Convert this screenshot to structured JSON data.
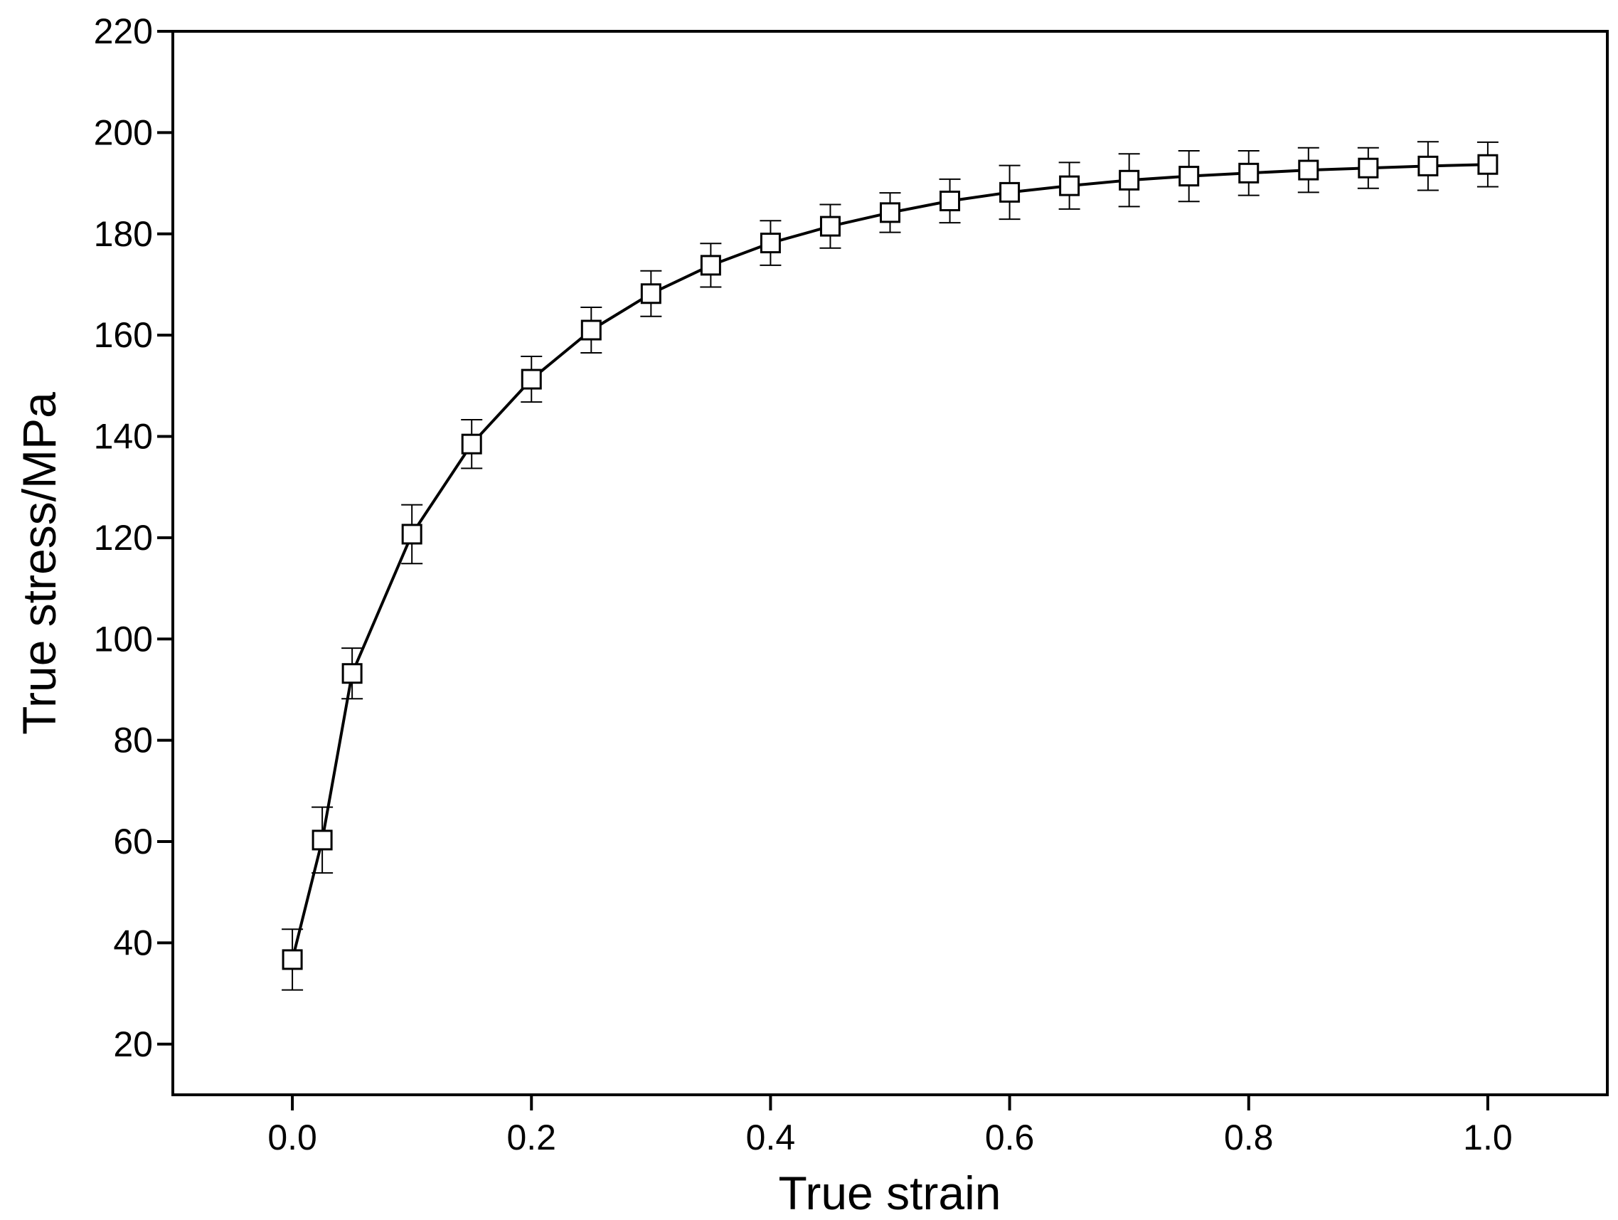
{
  "chart_data": {
    "type": "line",
    "title": "",
    "xlabel": "True strain",
    "ylabel": "True stress/MPa",
    "xlim": [
      -0.1,
      1.1
    ],
    "ylim": [
      10,
      220
    ],
    "xticks": [
      0.0,
      0.2,
      0.4,
      0.6,
      0.8,
      1.0
    ],
    "xtick_labels": [
      "0.0",
      "0.2",
      "0.4",
      "0.6",
      "0.8",
      "1.0"
    ],
    "yticks": [
      20,
      40,
      60,
      80,
      100,
      120,
      140,
      160,
      180,
      200,
      220
    ],
    "ytick_labels": [
      "20",
      "40",
      "60",
      "80",
      "100",
      "120",
      "140",
      "160",
      "180",
      "200",
      "220"
    ],
    "grid": false,
    "legend": "none",
    "marker": "open-square",
    "color": "#000000",
    "series": [
      {
        "x": [
          0.0,
          0.025,
          0.05,
          0.1,
          0.15,
          0.2,
          0.25,
          0.3,
          0.35,
          0.4,
          0.45,
          0.5,
          0.55,
          0.6,
          0.65,
          0.7,
          0.75,
          0.8,
          0.85,
          0.9,
          0.95,
          1.0
        ],
        "y": [
          36.7,
          60.3,
          93.2,
          120.7,
          138.5,
          151.3,
          161.0,
          168.2,
          173.8,
          178.2,
          181.5,
          184.2,
          186.5,
          188.2,
          189.5,
          190.6,
          191.4,
          192.0,
          192.6,
          193.0,
          193.4,
          193.7
        ],
        "error": [
          6.0,
          6.5,
          5.0,
          5.8,
          4.8,
          4.5,
          4.5,
          4.5,
          4.3,
          4.4,
          4.3,
          3.9,
          4.3,
          5.3,
          4.6,
          5.2,
          5.0,
          4.4,
          4.4,
          4.0,
          4.8,
          4.4
        ]
      }
    ]
  }
}
